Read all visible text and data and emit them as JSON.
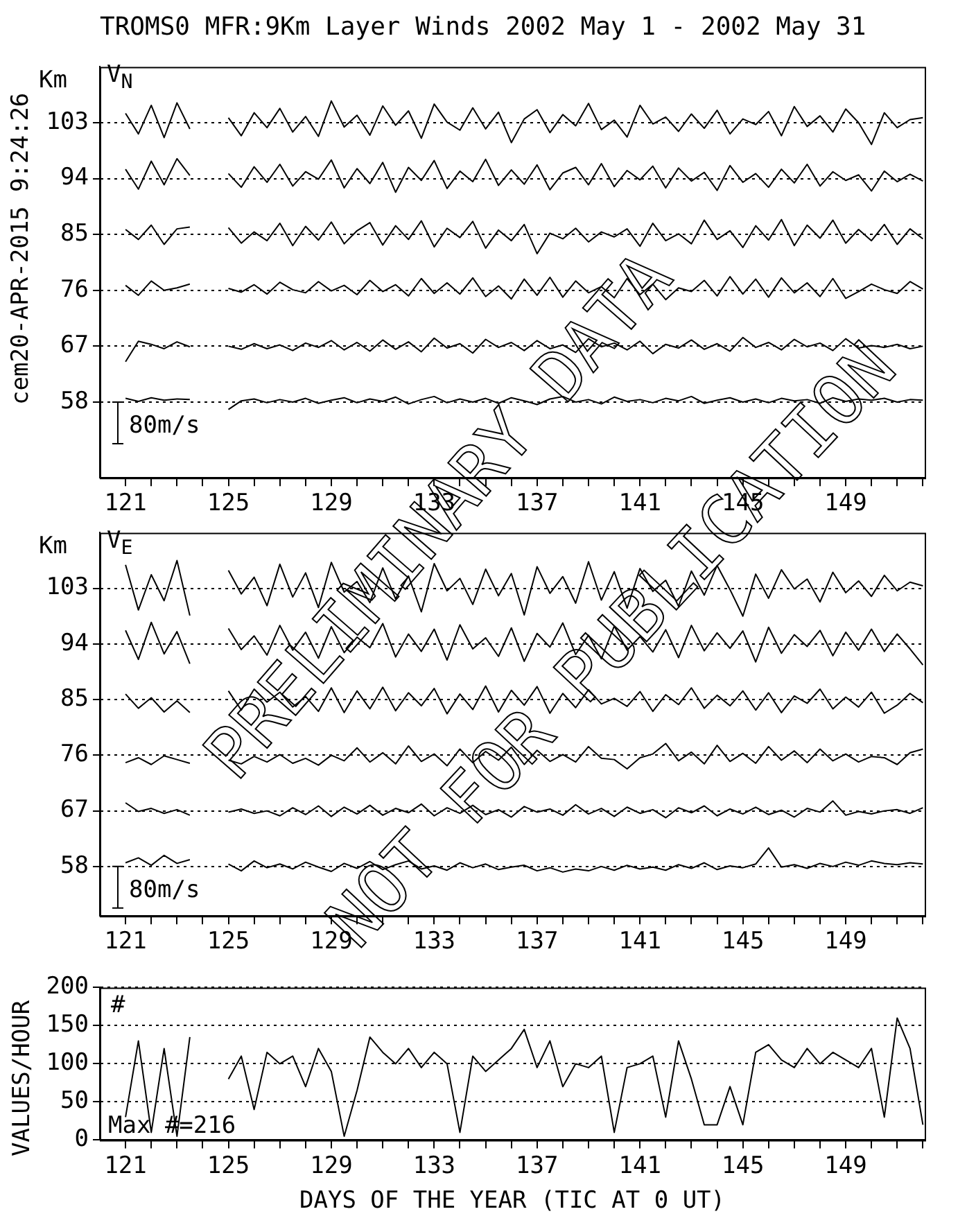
{
  "chart_data": [
    {
      "type": "line",
      "title": "TROMS0 MFR:9Km Layer Winds 2002 May  1 - 2002 May 31",
      "subtitle": "V$_{N}$",
      "ylabel": "Km",
      "annotations": [
        "cem20-APR-2015  9:24:26",
        "80m/s",
        "PRELIMINARY DATA",
        "NOT FOR PUBLICATION"
      ],
      "x": [
        121,
        121.5,
        122,
        122.5,
        123,
        123.5,
        124,
        124.5,
        125,
        125.5,
        126,
        126.5,
        127,
        127.5,
        128,
        128.5,
        129,
        129.5,
        130,
        130.5,
        131,
        131.5,
        132,
        132.5,
        133,
        133.5,
        134,
        134.5,
        135,
        135.5,
        136,
        136.5,
        137,
        137.5,
        138,
        138.5,
        139,
        139.5,
        140,
        140.5,
        141,
        141.5,
        142,
        142.5,
        143,
        143.5,
        144,
        144.5,
        145,
        145.5,
        146,
        146.5,
        147,
        147.5,
        148,
        148.5,
        149,
        149.5,
        150,
        150.5,
        151,
        151.5,
        152
      ],
      "series": [
        {
          "color": "#000000",
          "values": [
            104.5,
            101.2,
            105.8,
            100.6,
            106.2,
            102.0,
            null,
            null,
            103.8,
            100.9,
            104.6,
            102.2,
            105.3,
            101.5,
            104.0,
            100.8,
            106.5,
            102.3,
            104.2,
            101.0,
            105.7,
            102.6,
            104.9,
            100.5,
            106.0,
            103.1,
            101.8,
            105.4,
            102.0,
            104.7,
            99.8,
            103.6,
            105.1,
            101.4,
            104.3,
            102.5,
            106.1,
            101.9,
            103.4,
            100.7,
            105.8,
            102.8,
            103.9,
            101.6,
            104.4,
            102.1,
            105.0,
            101.2,
            103.6,
            102.7,
            104.8,
            100.9,
            105.6,
            102.4,
            104.1,
            101.5,
            105.2,
            103.0,
            99.5,
            104.6,
            102.2,
            103.5,
            103.8
          ]
        },
        {
          "color": "#000000",
          "values": [
            95.5,
            92.3,
            96.8,
            93.0,
            97.2,
            94.5,
            null,
            null,
            94.8,
            92.6,
            95.9,
            93.4,
            96.3,
            92.8,
            95.1,
            93.9,
            97.0,
            92.5,
            95.6,
            93.2,
            96.6,
            91.8,
            95.8,
            93.7,
            96.9,
            92.4,
            95.2,
            93.5,
            97.1,
            92.9,
            95.4,
            93.1,
            96.2,
            92.2,
            94.9,
            95.8,
            93.0,
            96.4,
            92.7,
            95.3,
            93.8,
            96.0,
            92.5,
            95.7,
            93.6,
            95.0,
            92.1,
            96.1,
            93.4,
            94.8,
            92.6,
            95.5,
            93.3,
            96.3,
            92.8,
            95.1,
            93.7,
            94.6,
            92.0,
            95.2,
            93.5,
            94.7,
            93.6
          ]
        },
        {
          "color": "#000000",
          "values": [
            85.8,
            84.2,
            86.5,
            83.4,
            85.9,
            86.2,
            null,
            null,
            86.1,
            83.6,
            85.4,
            84.0,
            86.8,
            83.2,
            86.3,
            84.1,
            87.0,
            83.5,
            85.6,
            86.9,
            83.3,
            86.4,
            84.2,
            87.2,
            83.0,
            86.0,
            84.5,
            87.1,
            82.8,
            85.7,
            84.0,
            86.6,
            81.9,
            85.2,
            84.3,
            86.0,
            83.8,
            85.4,
            84.6,
            85.9,
            83.1,
            86.8,
            84.0,
            85.1,
            83.5,
            87.3,
            84.2,
            85.6,
            82.9,
            86.4,
            84.1,
            87.4,
            83.2,
            86.5,
            84.4,
            87.3,
            83.6,
            85.8,
            84.0,
            86.6,
            83.4,
            85.9,
            84.3
          ]
        },
        {
          "color": "#000000",
          "values": [
            76.8,
            75.2,
            77.5,
            76.0,
            76.4,
            77.0,
            null,
            null,
            76.3,
            75.7,
            76.9,
            75.4,
            77.3,
            76.1,
            75.6,
            77.4,
            75.9,
            76.8,
            75.3,
            77.6,
            75.8,
            76.9,
            75.1,
            77.9,
            75.5,
            77.2,
            75.4,
            78.0,
            75.0,
            76.7,
            74.6,
            77.8,
            75.2,
            78.1,
            74.9,
            77.5,
            75.6,
            76.6,
            74.8,
            77.9,
            75.3,
            77.0,
            74.5,
            76.4,
            75.8,
            77.6,
            75.1,
            78.2,
            75.4,
            77.8,
            74.9,
            78.0,
            75.6,
            77.2,
            75.0,
            77.9,
            74.7,
            75.8,
            77.0,
            76.1,
            75.5,
            77.4,
            76.2
          ]
        },
        {
          "color": "#000000",
          "values": [
            64.5,
            67.8,
            67.3,
            66.6,
            67.7,
            66.9,
            null,
            null,
            67.0,
            66.5,
            67.4,
            66.6,
            67.2,
            66.3,
            67.5,
            66.8,
            67.9,
            66.4,
            67.6,
            66.2,
            68.0,
            66.5,
            67.7,
            66.1,
            68.3,
            66.7,
            67.4,
            65.9,
            68.1,
            66.8,
            67.6,
            66.3,
            67.9,
            66.6,
            67.2,
            66.0,
            68.2,
            66.9,
            67.5,
            66.4,
            67.8,
            65.8,
            67.3,
            66.7,
            68.0,
            66.5,
            67.4,
            66.2,
            68.4,
            66.8,
            67.6,
            66.4,
            68.1,
            66.9,
            67.5,
            66.3,
            68.2,
            66.7,
            67.1,
            66.8,
            67.3,
            66.6,
            67.0
          ]
        },
        {
          "color": "#000000",
          "values": [
            58.6,
            58.1,
            58.7,
            58.3,
            58.5,
            58.4,
            null,
            null,
            56.8,
            58.2,
            58.5,
            57.9,
            58.4,
            58.0,
            58.6,
            57.8,
            58.3,
            58.7,
            57.9,
            58.5,
            58.1,
            58.8,
            57.7,
            58.4,
            58.9,
            57.9,
            58.5,
            58.0,
            58.6,
            57.8,
            58.7,
            58.2,
            57.6,
            58.5,
            58.9,
            58.0,
            58.4,
            57.7,
            58.8,
            58.1,
            58.4,
            57.9,
            58.6,
            58.2,
            58.9,
            57.8,
            58.3,
            58.7,
            58.0,
            58.5,
            57.9,
            58.6,
            58.2,
            58.4,
            57.8,
            58.7,
            58.1,
            58.5,
            58.3,
            58.6,
            58.0,
            58.4,
            58.3
          ]
        }
      ],
      "xlim": [
        120,
        152.07
      ],
      "xticks": [
        121,
        {
          "value": 122,
          "label": null
        },
        {
          "value": 123,
          "label": null
        },
        {
          "value": 124,
          "label": null
        },
        125,
        {
          "value": 126,
          "label": null
        },
        {
          "value": 127,
          "label": null
        },
        {
          "value": 128,
          "label": null
        },
        129,
        {
          "value": 130,
          "label": null
        },
        {
          "value": 131,
          "label": null
        },
        {
          "value": 132,
          "label": null
        },
        133,
        {
          "value": 134,
          "label": null
        },
        {
          "value": 135,
          "label": null
        },
        {
          "value": 136,
          "label": null
        },
        137,
        {
          "value": 138,
          "label": null
        },
        {
          "value": 139,
          "label": null
        },
        {
          "value": 140,
          "label": null
        },
        141,
        {
          "value": 142,
          "label": null
        },
        {
          "value": 143,
          "label": null
        },
        {
          "value": 144,
          "label": null
        },
        145,
        {
          "value": 146,
          "label": null
        },
        {
          "value": 147,
          "label": null
        },
        {
          "value": 148,
          "label": null
        },
        149,
        {
          "value": 150,
          "label": null
        },
        {
          "value": 151,
          "label": null
        },
        {
          "value": 152,
          "label": null
        }
      ],
      "ylim": [
        45.8,
        112
      ],
      "yticks": [
        58,
        67,
        76,
        85,
        94,
        103
      ],
      "grid": "y",
      "legend": false
    },
    {
      "type": "line",
      "subtitle": "V$_{E}$",
      "ylabel": "Km",
      "annotations": [
        "80m/s"
      ],
      "x": [
        121,
        121.5,
        122,
        122.5,
        123,
        123.5,
        124,
        124.5,
        125,
        125.5,
        126,
        126.5,
        127,
        127.5,
        128,
        128.5,
        129,
        129.5,
        130,
        130.5,
        131,
        131.5,
        132,
        132.5,
        133,
        133.5,
        134,
        134.5,
        135,
        135.5,
        136,
        136.5,
        137,
        137.5,
        138,
        138.5,
        139,
        139.5,
        140,
        140.5,
        141,
        141.5,
        142,
        142.5,
        143,
        143.5,
        144,
        144.5,
        145,
        145.5,
        146,
        146.5,
        147,
        147.5,
        148,
        148.5,
        149,
        149.5,
        150,
        150.5,
        151,
        151.5,
        152
      ],
      "series": [
        {
          "color": "#000000",
          "values": [
            106.8,
            99.5,
            105.2,
            101.0,
            107.5,
            98.6,
            null,
            null,
            105.9,
            102.1,
            104.8,
            100.2,
            106.9,
            101.6,
            105.5,
            99.9,
            107.2,
            102.4,
            104.1,
            100.7,
            106.3,
            101.3,
            105.0,
            99.2,
            107.0,
            102.6,
            104.6,
            100.4,
            106.1,
            101.8,
            105.4,
            98.7,
            106.5,
            102.2,
            104.9,
            100.6,
            107.3,
            101.1,
            105.7,
            99.8,
            106.2,
            102.5,
            104.3,
            100.1,
            105.8,
            101.9,
            106.7,
            102.8,
            98.5,
            105.3,
            101.4,
            106.0,
            102.9,
            104.5,
            100.8,
            105.6,
            102.3,
            104.2,
            101.7,
            105.1,
            102.6,
            104.0,
            103.4
          ]
        },
        {
          "color": "#000000",
          "values": [
            96.2,
            91.5,
            97.5,
            92.4,
            96.0,
            90.8,
            null,
            null,
            96.5,
            93.1,
            95.3,
            92.2,
            97.0,
            93.0,
            95.9,
            91.7,
            96.8,
            92.6,
            95.1,
            93.4,
            97.3,
            91.9,
            95.6,
            92.8,
            96.4,
            91.4,
            97.1,
            93.2,
            95.0,
            92.0,
            96.6,
            91.2,
            95.7,
            93.5,
            97.4,
            92.3,
            95.4,
            91.6,
            96.9,
            93.0,
            95.2,
            92.7,
            96.3,
            91.8,
            97.0,
            92.9,
            95.8,
            93.3,
            96.1,
            91.1,
            96.7,
            92.5,
            95.5,
            93.6,
            96.2,
            92.1,
            95.9,
            93.0,
            96.4,
            92.8,
            95.6,
            93.2,
            90.6
          ]
        },
        {
          "color": "#000000",
          "values": [
            85.9,
            83.6,
            85.3,
            83.0,
            84.8,
            82.9,
            null,
            null,
            86.4,
            83.3,
            86.7,
            84.6,
            86.2,
            83.8,
            85.5,
            83.1,
            86.9,
            82.9,
            86.4,
            83.5,
            87.0,
            83.2,
            86.1,
            84.0,
            86.8,
            82.7,
            85.9,
            83.4,
            87.2,
            83.0,
            86.5,
            84.1,
            87.1,
            82.8,
            86.0,
            83.7,
            86.6,
            84.3,
            85.2,
            83.9,
            86.3,
            83.1,
            85.8,
            84.2,
            86.9,
            83.6,
            85.7,
            84.0,
            86.4,
            83.3,
            86.1,
            82.9,
            85.6,
            84.4,
            86.7,
            83.5,
            85.4,
            83.8,
            86.2,
            82.8,
            84.1,
            86.0,
            84.5
          ]
        },
        {
          "color": "#000000",
          "values": [
            74.8,
            75.6,
            74.5,
            75.9,
            75.3,
            74.7,
            null,
            null,
            75.2,
            74.6,
            75.8,
            74.9,
            76.1,
            74.7,
            75.5,
            74.4,
            76.0,
            75.1,
            77.2,
            74.9,
            76.4,
            74.6,
            77.5,
            75.0,
            76.2,
            74.3,
            77.0,
            74.8,
            76.6,
            75.2,
            77.3,
            74.5,
            76.8,
            75.0,
            76.1,
            74.9,
            77.4,
            75.5,
            75.3,
            73.8,
            75.6,
            76.2,
            77.9,
            75.1,
            76.5,
            74.6,
            77.6,
            75.0,
            76.3,
            74.7,
            77.4,
            75.2,
            76.7,
            74.8,
            77.0,
            75.1,
            76.2,
            74.9,
            75.8,
            75.6,
            74.5,
            76.4,
            77.0
          ]
        },
        {
          "color": "#000000",
          "values": [
            68.3,
            66.9,
            67.4,
            66.6,
            67.2,
            66.3,
            null,
            null,
            66.8,
            67.3,
            66.6,
            67.0,
            66.2,
            67.5,
            66.4,
            67.8,
            66.1,
            67.6,
            66.5,
            67.9,
            66.3,
            67.4,
            66.7,
            68.1,
            66.2,
            67.5,
            66.6,
            67.9,
            66.4,
            67.2,
            66.0,
            67.7,
            66.8,
            67.3,
            66.3,
            68.0,
            66.5,
            67.4,
            66.1,
            67.6,
            66.6,
            67.2,
            65.9,
            67.5,
            66.7,
            67.8,
            66.2,
            67.3,
            66.5,
            67.6,
            66.4,
            67.1,
            66.0,
            67.4,
            66.8,
            68.6,
            66.3,
            66.9,
            66.5,
            67.0,
            67.2,
            66.6,
            67.5
          ]
        },
        {
          "color": "#000000",
          "values": [
            58.6,
            59.4,
            58.2,
            59.8,
            58.5,
            59.1,
            null,
            null,
            58.4,
            57.3,
            58.9,
            57.8,
            58.4,
            57.6,
            58.7,
            57.9,
            57.2,
            58.5,
            57.7,
            58.8,
            57.5,
            58.3,
            58.9,
            57.6,
            58.1,
            57.4,
            58.6,
            57.8,
            58.4,
            57.5,
            57.9,
            58.2,
            57.3,
            57.8,
            57.1,
            57.6,
            57.3,
            58.0,
            57.4,
            58.2,
            57.6,
            57.9,
            57.4,
            58.3,
            57.7,
            58.6,
            57.5,
            58.1,
            57.8,
            58.4,
            61.0,
            57.9,
            58.3,
            57.7,
            58.5,
            58.0,
            58.7,
            58.2,
            58.9,
            58.5,
            58.3,
            58.6,
            58.4
          ]
        }
      ],
      "xlim": [
        120,
        152.07
      ],
      "xticks": [
        121,
        {
          "value": 122,
          "label": null
        },
        {
          "value": 123,
          "label": null
        },
        {
          "value": 124,
          "label": null
        },
        125,
        {
          "value": 126,
          "label": null
        },
        {
          "value": 127,
          "label": null
        },
        {
          "value": 128,
          "label": null
        },
        129,
        {
          "value": 130,
          "label": null
        },
        {
          "value": 131,
          "label": null
        },
        {
          "value": 132,
          "label": null
        },
        133,
        {
          "value": 134,
          "label": null
        },
        {
          "value": 135,
          "label": null
        },
        {
          "value": 136,
          "label": null
        },
        137,
        {
          "value": 138,
          "label": null
        },
        {
          "value": 139,
          "label": null
        },
        {
          "value": 140,
          "label": null
        },
        141,
        {
          "value": 142,
          "label": null
        },
        {
          "value": 143,
          "label": null
        },
        {
          "value": 144,
          "label": null
        },
        145,
        {
          "value": 146,
          "label": null
        },
        {
          "value": 147,
          "label": null
        },
        {
          "value": 148,
          "label": null
        },
        149,
        {
          "value": 150,
          "label": null
        },
        {
          "value": 151,
          "label": null
        },
        {
          "value": 152,
          "label": null
        }
      ],
      "ylim": [
        50,
        112
      ],
      "yticks": [
        58,
        67,
        76,
        85,
        94,
        103
      ],
      "grid": "y",
      "legend": false
    },
    {
      "type": "line",
      "xlabel": "DAYS OF THE YEAR (TIC AT 0 UT)",
      "ylabel": "VALUES/HOUR",
      "annotations": [
        "#",
        "Max #=216"
      ],
      "x": [
        121,
        121.5,
        122,
        122.5,
        123,
        123.5,
        124,
        124.5,
        125,
        125.5,
        126,
        126.5,
        127,
        127.5,
        128,
        128.5,
        129,
        129.5,
        130,
        130.5,
        131,
        131.5,
        132,
        132.5,
        133,
        133.5,
        134,
        134.5,
        135,
        135.5,
        136,
        136.5,
        137,
        137.5,
        138,
        138.5,
        139,
        139.5,
        140,
        140.5,
        141,
        141.5,
        142,
        142.5,
        143,
        143.5,
        144,
        144.5,
        145,
        145.5,
        146,
        146.5,
        147,
        147.5,
        148,
        148.5,
        149,
        149.5,
        150,
        150.5,
        151,
        151.5,
        152
      ],
      "series": [
        {
          "color": "#000000",
          "values": [
            30,
            130,
            10,
            120,
            5,
            135,
            null,
            null,
            80,
            110,
            40,
            115,
            100,
            110,
            70,
            120,
            90,
            5,
            65,
            135,
            115,
            100,
            120,
            95,
            115,
            100,
            10,
            110,
            90,
            105,
            120,
            145,
            95,
            130,
            70,
            100,
            95,
            110,
            10,
            95,
            100,
            110,
            30,
            130,
            80,
            20,
            20,
            70,
            20,
            115,
            125,
            105,
            95,
            120,
            100,
            115,
            105,
            95,
            120,
            30,
            160,
            120,
            20
          ]
        }
      ],
      "xlim": [
        120,
        152.07
      ],
      "xticks": [
        121,
        {
          "value": 122,
          "label": null
        },
        {
          "value": 123,
          "label": null
        },
        {
          "value": 124,
          "label": null
        },
        125,
        {
          "value": 126,
          "label": null
        },
        {
          "value": 127,
          "label": null
        },
        {
          "value": 128,
          "label": null
        },
        129,
        {
          "value": 130,
          "label": null
        },
        {
          "value": 131,
          "label": null
        },
        {
          "value": 132,
          "label": null
        },
        133,
        {
          "value": 134,
          "label": null
        },
        {
          "value": 135,
          "label": null
        },
        {
          "value": 136,
          "label": null
        },
        137,
        {
          "value": 138,
          "label": null
        },
        {
          "value": 139,
          "label": null
        },
        {
          "value": 140,
          "label": null
        },
        141,
        {
          "value": 142,
          "label": null
        },
        {
          "value": 143,
          "label": null
        },
        {
          "value": 144,
          "label": null
        },
        145,
        {
          "value": 146,
          "label": null
        },
        {
          "value": 147,
          "label": null
        },
        {
          "value": 148,
          "label": null
        },
        149,
        {
          "value": 150,
          "label": null
        },
        {
          "value": 151,
          "label": null
        },
        {
          "value": 152,
          "label": null
        }
      ],
      "ylim": [
        0,
        200
      ],
      "yticks": [
        0,
        50,
        100,
        150,
        200
      ],
      "grid": "y",
      "legend": false
    }
  ]
}
